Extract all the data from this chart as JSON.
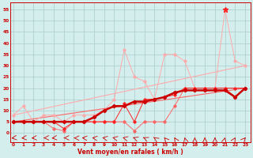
{
  "bg_color": "#d4eeee",
  "grid_color": "#aacccc",
  "xlabel": "Vent moyen/en rafales ( km/h )",
  "x_ticks": [
    0,
    1,
    2,
    3,
    4,
    5,
    6,
    7,
    8,
    9,
    10,
    11,
    12,
    13,
    14,
    15,
    16,
    17,
    18,
    19,
    20,
    21,
    22,
    23
  ],
  "y_ticks": [
    0,
    5,
    10,
    15,
    20,
    25,
    30,
    35,
    40,
    45,
    50,
    55
  ],
  "ylim": [
    -4,
    58
  ],
  "xlim": [
    -0.3,
    23.5
  ],
  "tick_color": "#cc0000",
  "tick_fontsize": 4.2,
  "xlabel_fontsize": 5.5,
  "line_light_color": "#ffaaaa",
  "line_mid_color": "#ff6666",
  "line_dark_color": "#ff2222",
  "line_bold_color": "#cc0000",
  "marker_color": "#cc0000",
  "arrow_color": "#cc0000",
  "trend1_x": [
    0,
    23
  ],
  "trend1_y": [
    8,
    30
  ],
  "trend2_x": [
    0,
    23
  ],
  "trend2_y": [
    5,
    20
  ],
  "series_light": [
    8,
    12,
    5,
    8,
    8,
    5,
    8,
    8,
    8,
    10,
    15,
    37,
    25,
    23,
    15,
    35,
    35,
    32,
    20,
    20,
    20,
    55,
    32,
    30
  ],
  "series_mid": [
    5,
    5,
    5,
    5,
    2,
    1,
    5,
    5,
    5,
    5,
    5,
    5,
    1,
    5,
    5,
    5,
    12,
    20,
    20,
    20,
    20,
    20,
    16,
    20
  ],
  "series_dark": [
    5,
    5,
    5,
    5,
    5,
    2,
    5,
    5,
    5,
    5,
    5,
    13,
    5,
    15,
    15,
    16,
    17,
    20,
    20,
    20,
    20,
    20,
    20,
    20
  ],
  "series_bold": [
    5,
    5,
    5,
    5,
    5,
    5,
    5,
    5,
    7,
    10,
    12,
    12,
    14,
    14,
    15,
    16,
    18,
    19,
    19,
    19,
    19,
    19,
    16,
    20
  ],
  "arrows_angles": [
    200,
    195,
    190,
    185,
    195,
    185,
    175,
    165,
    155,
    150,
    145,
    140,
    130,
    125,
    115,
    105,
    100,
    95,
    90,
    90,
    90,
    85,
    80,
    75
  ]
}
